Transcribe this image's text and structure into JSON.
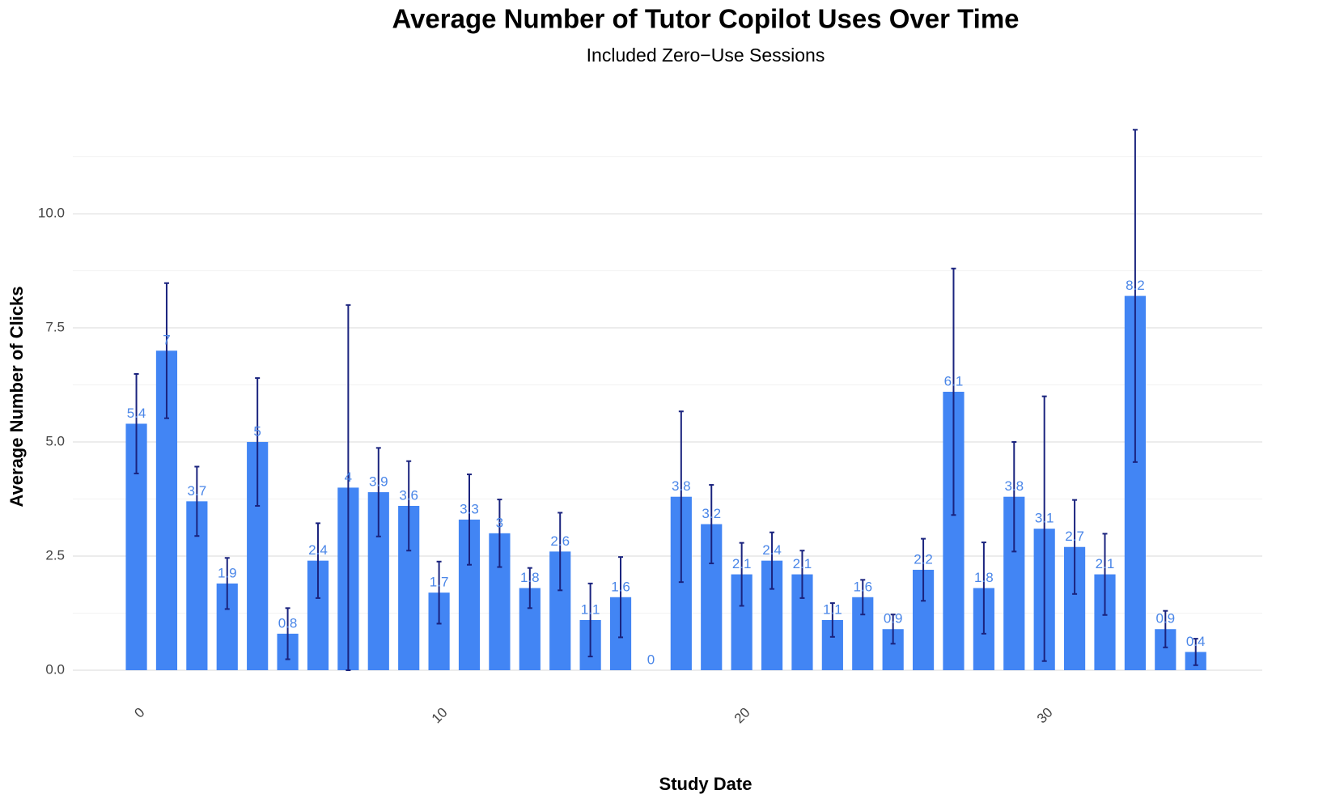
{
  "chart_data": {
    "type": "bar",
    "title": "Average Number of Tutor Copilot Uses Over Time",
    "subtitle": "Included Zero−Use Sessions",
    "x_label": "Study Date",
    "y_label": "Average Number of Clicks",
    "x": [
      0,
      1,
      2,
      3,
      4,
      5,
      6,
      7,
      8,
      9,
      10,
      11,
      12,
      13,
      14,
      15,
      16,
      17,
      18,
      19,
      20,
      21,
      22,
      23,
      24,
      25,
      26,
      27,
      28,
      29,
      30,
      31,
      32,
      33,
      34,
      35
    ],
    "values": [
      5.4,
      7,
      3.7,
      1.9,
      5,
      0.8,
      2.4,
      4,
      3.9,
      3.6,
      1.7,
      3.3,
      3,
      1.8,
      2.6,
      1.1,
      1.6,
      0,
      3.8,
      3.2,
      2.1,
      2.4,
      2.1,
      1.1,
      1.6,
      0.9,
      2.2,
      6.1,
      1.8,
      3.8,
      3.1,
      2.7,
      2.1,
      8.2,
      0.9,
      0.4
    ],
    "errors": [
      1.09,
      1.48,
      0.76,
      0.56,
      1.4,
      0.56,
      0.82,
      4.0,
      0.97,
      0.98,
      0.68,
      0.99,
      0.74,
      0.44,
      0.85,
      0.8,
      0.88,
      null,
      1.87,
      0.86,
      0.69,
      0.62,
      0.52,
      0.37,
      0.38,
      0.32,
      0.68,
      2.7,
      1.0,
      1.2,
      2.9,
      1.03,
      0.89,
      3.64,
      0.4,
      0.29
    ],
    "color": "#4285f4",
    "error_color": "#1a237e",
    "label_color": "#4a86e8",
    "xlim": [
      -2.1,
      37.2
    ],
    "xticks": [
      0,
      10,
      20,
      30
    ],
    "ylim": [
      0,
      12.2
    ],
    "yticks": [
      {
        "value": 0,
        "label": "0.0"
      },
      {
        "value": 2.5,
        "label": "2.5"
      },
      {
        "value": 5,
        "label": "5.0"
      },
      {
        "value": 7.5,
        "label": "7.5"
      },
      {
        "value": 10,
        "label": "10.0"
      }
    ],
    "minor_yticks": [
      1.25,
      3.75,
      6.25,
      8.75,
      11.25
    ],
    "grid": true
  }
}
